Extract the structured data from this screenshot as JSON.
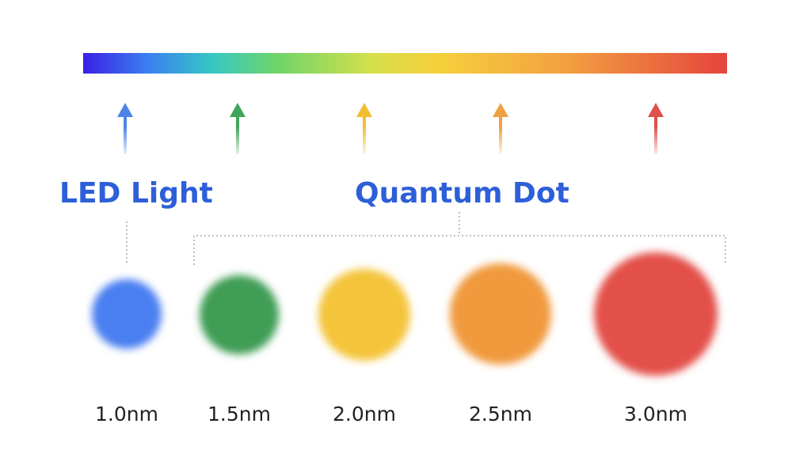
{
  "labels": {
    "led": "LED Light",
    "quantum_dot": "Quantum Dot"
  },
  "dots": [
    {
      "size": "1.0nm"
    },
    {
      "size": "1.5nm"
    },
    {
      "size": "2.0nm"
    },
    {
      "size": "2.5nm"
    },
    {
      "size": "3.0nm"
    }
  ]
}
